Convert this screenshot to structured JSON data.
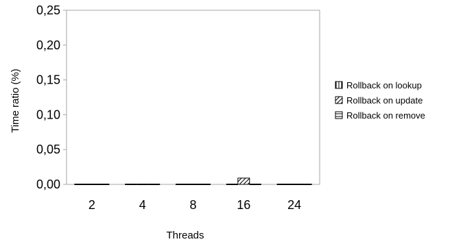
{
  "chart_data": {
    "type": "bar",
    "title": "",
    "xlabel": "Threads",
    "ylabel": "Time ratio (%)",
    "categories": [
      "2",
      "4",
      "8",
      "16",
      "24"
    ],
    "ylim": [
      0,
      0.25
    ],
    "yticks": [
      "0,00",
      "0,05",
      "0,10",
      "0,15",
      "0,20",
      "0,25"
    ],
    "grid": false,
    "legend_position": "right",
    "series": [
      {
        "name": "Rollback on lookup",
        "pattern": "vertical-lines",
        "values": [
          0,
          0,
          0,
          0,
          0
        ]
      },
      {
        "name": "Rollback on update",
        "pattern": "diagonal-lines",
        "values": [
          0,
          0,
          0,
          0.009,
          0
        ]
      },
      {
        "name": "Rollback on remove",
        "pattern": "horizontal-lines",
        "values": [
          0,
          0,
          0,
          0,
          0
        ]
      }
    ]
  }
}
